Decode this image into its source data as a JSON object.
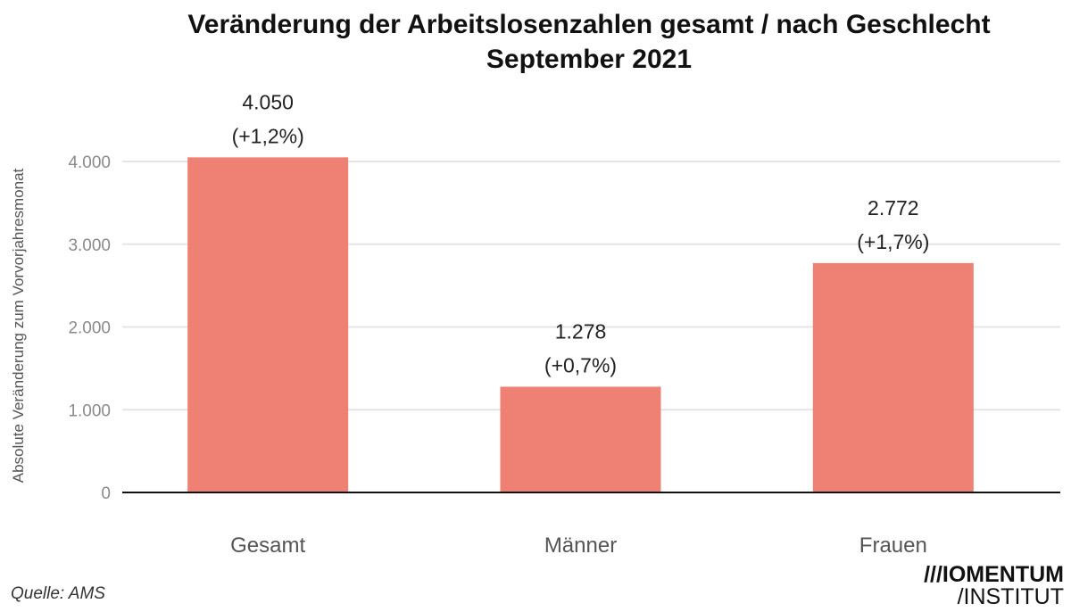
{
  "chart_data": {
    "type": "bar",
    "title_line1": "Veränderung der Arbeitslosenzahlen gesamt / nach Geschlecht",
    "title_line2": "September 2021",
    "ylabel": "Absolute Veränderung zum Vorvorjahresmonat",
    "xlabel": "",
    "categories": [
      "Gesamt",
      "Männer",
      "Frauen"
    ],
    "values": [
      4050,
      1278,
      2772
    ],
    "value_labels": [
      "4.050",
      "1.278",
      "2.772"
    ],
    "percent_labels": [
      "(+1,2%)",
      "(+0,7%)",
      "(+1,7%)"
    ],
    "y_ticks": [
      0,
      1000,
      2000,
      3000,
      4000
    ],
    "y_tick_labels": [
      "0",
      "1.000",
      "2.000",
      "3.000",
      "4.000"
    ],
    "ylim": [
      0,
      4000
    ],
    "grid": true,
    "legend": "none",
    "bar_color": "#ee8074",
    "grid_color": "#e5e5e5",
    "axis_color": "#111111"
  },
  "footer": {
    "source": "Quelle: AMS",
    "logo_line1": "///IOMENTUM",
    "logo_line2": "/INSTITUT"
  }
}
